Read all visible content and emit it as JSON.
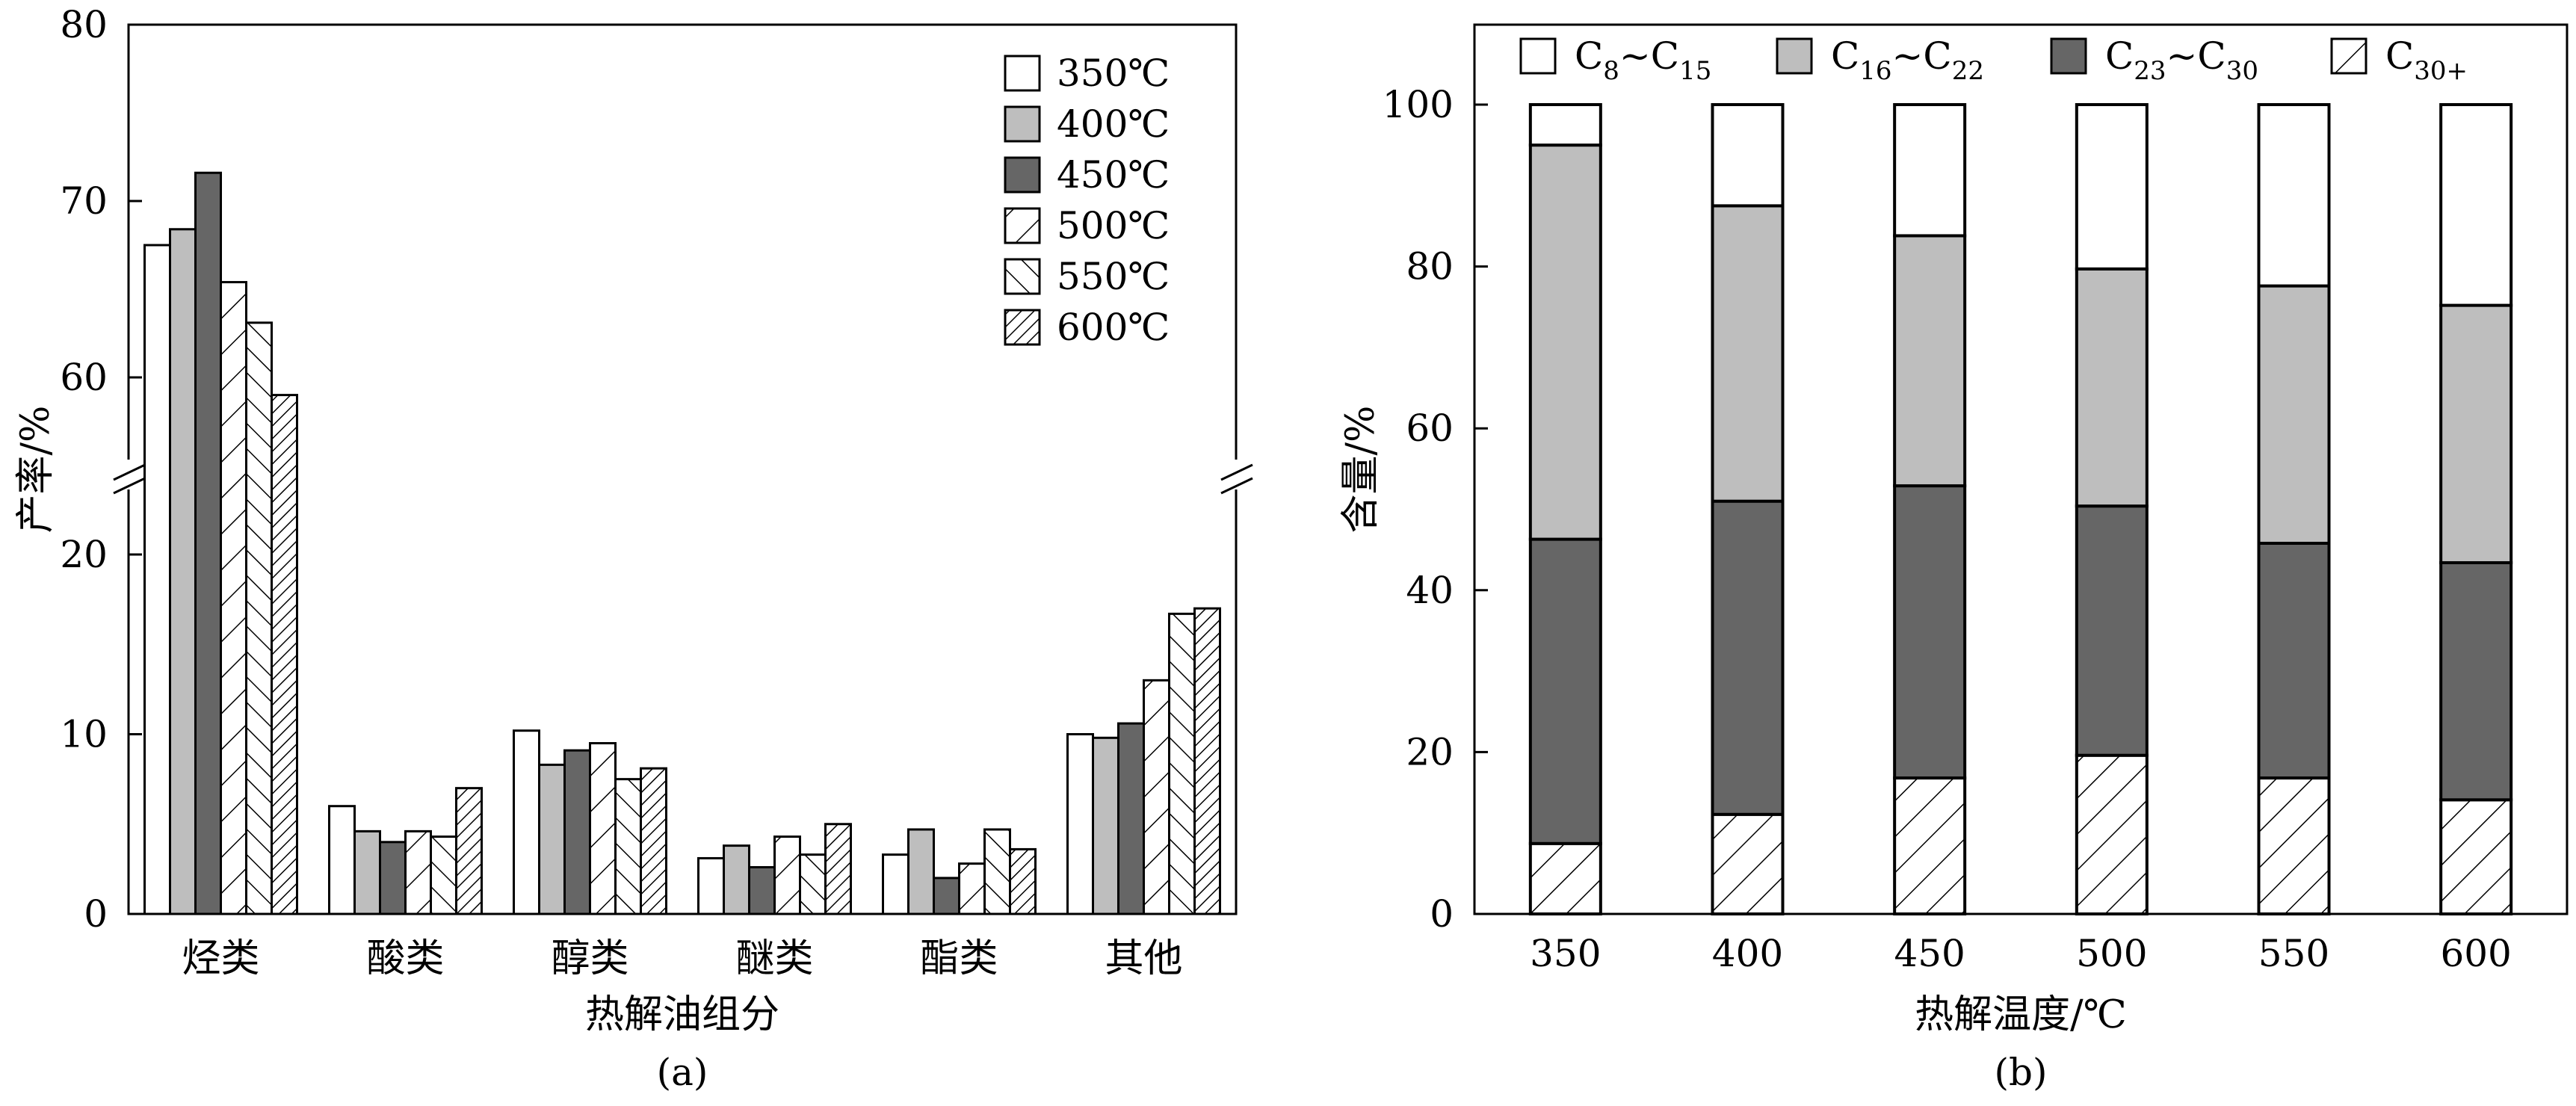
{
  "chart_data": [
    {
      "id": "a",
      "type": "bar",
      "caption": "(a)",
      "xlabel": "热解油组分",
      "ylabel": "产率/%",
      "categories": [
        "烃类",
        "酸类",
        "醇类",
        "醚类",
        "酯类",
        "其他"
      ],
      "axis_break": {
        "lower": [
          0,
          25
        ],
        "upper": [
          55,
          80
        ]
      },
      "yticks": [
        0,
        10,
        20,
        60,
        70,
        80
      ],
      "legend_position": "top-right",
      "series": [
        {
          "name": "350℃",
          "pattern": "white",
          "values": [
            67.5,
            6.0,
            10.2,
            3.1,
            3.3,
            10.0
          ]
        },
        {
          "name": "400℃",
          "pattern": "lightgray",
          "values": [
            68.4,
            4.6,
            8.3,
            3.8,
            4.7,
            9.8
          ]
        },
        {
          "name": "450℃",
          "pattern": "darkgray",
          "values": [
            71.6,
            4.0,
            9.1,
            2.6,
            2.0,
            10.6
          ]
        },
        {
          "name": "500℃",
          "pattern": "hatch-sparse-fwd",
          "values": [
            65.4,
            4.6,
            9.5,
            4.3,
            2.8,
            13.0
          ]
        },
        {
          "name": "550℃",
          "pattern": "hatch-back",
          "values": [
            63.1,
            4.3,
            7.5,
            3.3,
            4.7,
            16.7
          ]
        },
        {
          "name": "600℃",
          "pattern": "hatch-dense-fwd",
          "values": [
            59.0,
            7.0,
            8.1,
            5.0,
            3.6,
            17.0
          ]
        }
      ]
    },
    {
      "id": "b",
      "type": "bar",
      "stacked": true,
      "caption": "(b)",
      "xlabel": "热解温度/℃",
      "ylabel": "含量/%",
      "categories": [
        "350",
        "400",
        "450",
        "500",
        "550",
        "600"
      ],
      "ylim": [
        0,
        110
      ],
      "yticks": [
        0,
        20,
        40,
        60,
        80,
        100
      ],
      "legend_position": "top",
      "legend": [
        {
          "main": "C",
          "sub1": "8",
          "mid": "~C",
          "sub2": "15",
          "pattern": "white"
        },
        {
          "main": "C",
          "sub1": "16",
          "mid": "~C",
          "sub2": "22",
          "pattern": "lightgray"
        },
        {
          "main": "C",
          "sub1": "23",
          "mid": "~C",
          "sub2": "30",
          "pattern": "darkgray"
        },
        {
          "main": "C",
          "sub1": "30+",
          "mid": "",
          "sub2": "",
          "pattern": "hatch-fwd"
        }
      ],
      "series": [
        {
          "name": "C30+",
          "pattern": "hatch-fwd",
          "values": [
            8.7,
            12.3,
            16.8,
            19.6,
            16.8,
            14.1
          ]
        },
        {
          "name": "C23~C30",
          "pattern": "darkgray",
          "values": [
            37.6,
            38.7,
            36.1,
            30.8,
            29.0,
            29.3
          ]
        },
        {
          "name": "C16~C22",
          "pattern": "lightgray",
          "values": [
            48.7,
            36.5,
            30.9,
            29.3,
            31.8,
            31.8
          ]
        },
        {
          "name": "C8~C15",
          "pattern": "white",
          "values": [
            5.0,
            12.5,
            16.2,
            20.3,
            22.4,
            24.8
          ]
        }
      ]
    }
  ]
}
